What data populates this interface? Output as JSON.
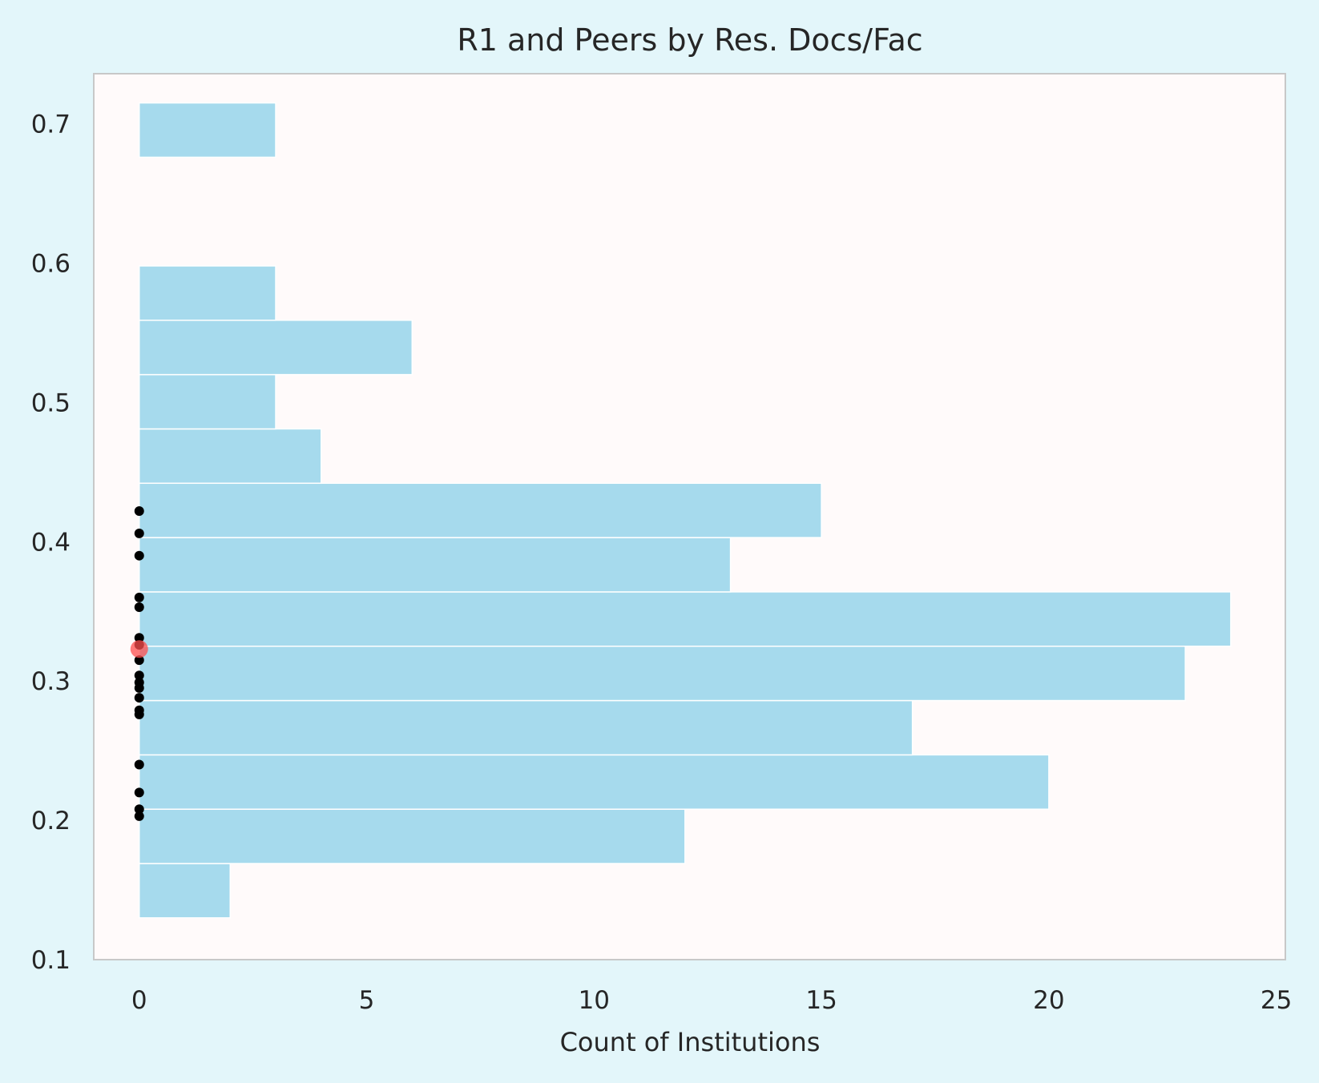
{
  "colors": {
    "page_background": "#e3f6fa",
    "plot_background": "#fffafa",
    "plot_border": "#c8c8c8",
    "bar_fill": "#a6daed",
    "bar_edge": "#ffffff",
    "peer_point": "#000000",
    "highlight_point": "#ff4d4d",
    "text": "#262626"
  },
  "chart_data": {
    "type": "bar",
    "orientation": "horizontal",
    "title": "R1 and Peers by Res. Docs/Fac",
    "xlabel": "Count of Institutions",
    "ylabel": "",
    "xlim": [
      -1,
      25.2
    ],
    "ylim": [
      0.1,
      0.736
    ],
    "grid": false,
    "xticks": [
      0,
      5,
      10,
      15,
      20,
      25
    ],
    "yticks": [
      0.1,
      0.2,
      0.3,
      0.4,
      0.5,
      0.6,
      0.7
    ],
    "bins": [
      {
        "y0": 0.13,
        "y1": 0.169,
        "count": 2
      },
      {
        "y0": 0.169,
        "y1": 0.208,
        "count": 12
      },
      {
        "y0": 0.208,
        "y1": 0.247,
        "count": 20
      },
      {
        "y0": 0.247,
        "y1": 0.286,
        "count": 17
      },
      {
        "y0": 0.286,
        "y1": 0.325,
        "count": 23
      },
      {
        "y0": 0.325,
        "y1": 0.364,
        "count": 24
      },
      {
        "y0": 0.364,
        "y1": 0.403,
        "count": 13
      },
      {
        "y0": 0.403,
        "y1": 0.442,
        "count": 15
      },
      {
        "y0": 0.442,
        "y1": 0.481,
        "count": 4
      },
      {
        "y0": 0.481,
        "y1": 0.52,
        "count": 3
      },
      {
        "y0": 0.52,
        "y1": 0.559,
        "count": 6
      },
      {
        "y0": 0.559,
        "y1": 0.598,
        "count": 3
      },
      {
        "y0": 0.598,
        "y1": 0.637,
        "count": 0
      },
      {
        "y0": 0.637,
        "y1": 0.676,
        "count": 0
      },
      {
        "y0": 0.676,
        "y1": 0.715,
        "count": 3
      }
    ],
    "peer_points": {
      "x": 0,
      "y": [
        0.422,
        0.406,
        0.39,
        0.36,
        0.353,
        0.331,
        0.326,
        0.315,
        0.304,
        0.299,
        0.295,
        0.288,
        0.279,
        0.276,
        0.24,
        0.22,
        0.208,
        0.203
      ]
    },
    "highlight_point": {
      "x": 0,
      "y": 0.323
    }
  }
}
